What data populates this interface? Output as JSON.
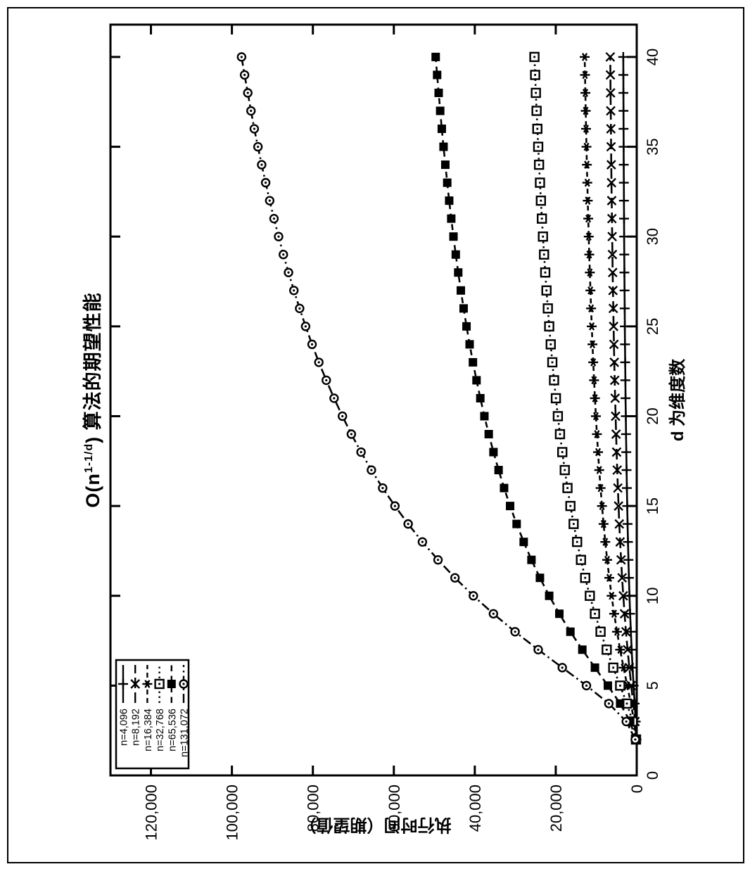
{
  "figure": {
    "title": {
      "prefix": "O(n",
      "sup": "1-1/d",
      "suffix": ") 算法的期望性能"
    },
    "xlabel": "d 为维度数",
    "ylabel": "执行时间（期望值）",
    "colors": {
      "foreground": "#000000",
      "background": "#ffffff"
    }
  },
  "chart_data": {
    "type": "line",
    "title": "O(n^{1-1/d}) 算法的期望性能",
    "xlabel": "d 为维度数",
    "ylabel": "执行时间（期望值）",
    "xlim": [
      0,
      41.8
    ],
    "ylim": [
      0,
      130000
    ],
    "xticks": [
      0,
      5,
      10,
      15,
      20,
      25,
      30,
      35,
      40
    ],
    "xtick_labels": [
      "0",
      "5",
      "10",
      "15",
      "20",
      "25",
      "30",
      "35",
      "40"
    ],
    "yticks": [
      0,
      20000,
      40000,
      60000,
      80000,
      100000,
      120000
    ],
    "ytick_labels": [
      "0",
      "20,000",
      "40,000",
      "60,000",
      "80,000",
      "100,000",
      "120,000"
    ],
    "grid": false,
    "legend_position": "top-left",
    "orientation_note": "entire chart rotated 90 degrees counter-clockwise in the scan",
    "x": [
      2,
      3,
      4,
      5,
      6,
      7,
      8,
      9,
      10,
      11,
      12,
      13,
      14,
      15,
      16,
      17,
      18,
      19,
      20,
      21,
      22,
      23,
      24,
      25,
      26,
      27,
      28,
      29,
      30,
      31,
      32,
      33,
      34,
      35,
      36,
      37,
      38,
      39,
      40
    ],
    "series": [
      {
        "name": "n=4,096",
        "marker": "plus",
        "dash": "solid",
        "values": [
          64,
          256,
          512,
          776,
          1024,
          1248,
          1448,
          1626,
          1783,
          1923,
          2048,
          2160,
          2261,
          2352,
          2435,
          2511,
          2580,
          2644,
          2702,
          2756,
          2806,
          2853,
          2896,
          2937,
          2974,
          3010,
          3043,
          3075,
          3104,
          3132,
          3158,
          3183,
          3207,
          3229,
          3251,
          3271,
          3290,
          3309,
          3327
        ]
      },
      {
        "name": "n=8,192",
        "marker": "cross",
        "dash": "longdash",
        "values": [
          91,
          406,
          861,
          1351,
          1825,
          2261,
          2656,
          3011,
          3327,
          3611,
          3866,
          4096,
          4303,
          4491,
          4664,
          4821,
          4965,
          5098,
          5220,
          5333,
          5438,
          5537,
          5627,
          5713,
          5791,
          5867,
          5937,
          6004,
          6066,
          6125,
          6180,
          6233,
          6284,
          6331,
          6378,
          6420,
          6461,
          6501,
          6540
        ]
      },
      {
        "name": "n=16,384",
        "marker": "asterisk",
        "dash": "dash",
        "values": [
          128,
          645,
          1448,
          2353,
          3251,
          4095,
          4871,
          5575,
          6209,
          6781,
          7298,
          7766,
          8190,
          8577,
          8932,
          9257,
          9555,
          9832,
          10084,
          10319,
          10538,
          10744,
          10933,
          11113,
          11277,
          11436,
          11583,
          11724,
          11854,
          11979,
          12095,
          12206,
          12314,
          12413,
          12512,
          12601,
          12687,
          12773,
          12855
        ]
      },
      {
        "name": "n=32,768",
        "marker": "square-open",
        "dash": "dot",
        "values": [
          181,
          1024,
          2435,
          4096,
          5793,
          7418,
          8933,
          10323,
          11587,
          12733,
          13776,
          14725,
          15588,
          16379,
          17106,
          17773,
          18388,
          18958,
          19480,
          19968,
          20421,
          20850,
          21243,
          21617,
          21959,
          22291,
          22599,
          22893,
          23165,
          23427,
          23671,
          23902,
          24129,
          24338,
          24546,
          24734,
          24914,
          25095,
          25267
        ]
      },
      {
        "name": "n=65,536",
        "marker": "square-filled",
        "dash": "meddash",
        "values": [
          256,
          1626,
          4096,
          7132,
          10321,
          13436,
          16384,
          19115,
          21623,
          23909,
          26004,
          27920,
          29667,
          31277,
          32768,
          34124,
          35387,
          36557,
          37631,
          38637,
          39572,
          40462,
          41276,
          42050,
          42762,
          43450,
          44090,
          44703,
          45269,
          45816,
          46327,
          46808,
          47281,
          47720,
          48155,
          48548,
          48924,
          49304,
          49663
        ]
      },
      {
        "name": "n=131,072",
        "marker": "circle-open",
        "dash": "dashdot",
        "values": [
          362,
          2580,
          6889,
          12417,
          18390,
          24338,
          30047,
          35396,
          40351,
          44896,
          49088,
          52940,
          56465,
          59727,
          62757,
          65536,
          68100,
          70493,
          72695,
          74763,
          76687,
          78521,
          80200,
          81796,
          83270,
          84693,
          86020,
          87291,
          88465,
          89602,
          90667,
          91664,
          92647,
          93565,
          94471,
          95290,
          96073,
          96867,
          97614
        ]
      }
    ]
  }
}
